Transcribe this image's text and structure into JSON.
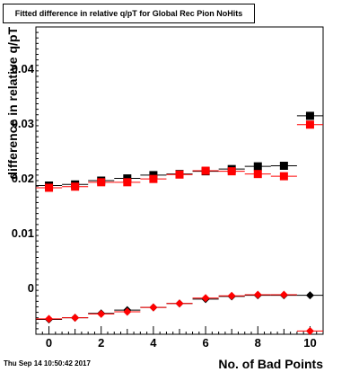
{
  "title": "Fitted difference in relative q/pT for Global Rec Pion NoHits",
  "timestamp": "Thu Sep 14 10:50:42 2017",
  "chart_data": {
    "type": "scatter",
    "title": "Fitted difference in relative q/pT for Global Rec Pion NoHits",
    "xlabel": "No. of Bad Points",
    "ylabel": "difference in relative q/pT",
    "xlim": [
      -0.5,
      10.5
    ],
    "ylim": [
      -0.0085,
      0.0475
    ],
    "x_ticks": [
      0,
      2,
      4,
      6,
      8,
      10
    ],
    "x_tick_labels": [
      "0",
      "2",
      "4",
      "6",
      "8",
      "10"
    ],
    "y_ticks": [
      0,
      0.01,
      0.02,
      0.03,
      0.04
    ],
    "y_tick_labels": [
      "0",
      "0.01",
      "0.02",
      "0.03",
      "0.04"
    ],
    "grid": false,
    "series": [
      {
        "marker": "square",
        "color": "#000000",
        "x": [
          0,
          1,
          2,
          3,
          4,
          5,
          6,
          7,
          8,
          9,
          10
        ],
        "y": [
          0.0186,
          0.0188,
          0.0195,
          0.0199,
          0.0205,
          0.0207,
          0.0212,
          0.0216,
          0.0221,
          0.0222,
          0.0313
        ]
      },
      {
        "marker": "square",
        "color": "#ff0000",
        "x": [
          0,
          1,
          2,
          3,
          4,
          5,
          6,
          7,
          8,
          9,
          10
        ],
        "y": [
          0.0182,
          0.0184,
          0.0192,
          0.0192,
          0.0198,
          0.0206,
          0.0213,
          0.0212,
          0.0207,
          0.0203,
          0.0297
        ]
      },
      {
        "marker": "diamond",
        "color": "#000000",
        "x": [
          0,
          1,
          2,
          3,
          4,
          5,
          6,
          7,
          8,
          9,
          10
        ],
        "y": [
          -0.0058,
          -0.0055,
          -0.0047,
          -0.0041,
          -0.0036,
          -0.0029,
          -0.0021,
          -0.0016,
          -0.0014,
          -0.0014,
          -0.0014
        ]
      },
      {
        "marker": "diamond",
        "color": "#ff0000",
        "x": [
          0,
          1,
          2,
          3,
          4,
          5,
          6,
          7,
          8,
          9,
          10
        ],
        "y": [
          -0.0057,
          -0.0055,
          -0.0048,
          -0.0044,
          -0.0036,
          -0.0029,
          -0.0019,
          -0.0015,
          -0.0013,
          -0.0013,
          -0.0079
        ]
      }
    ]
  }
}
